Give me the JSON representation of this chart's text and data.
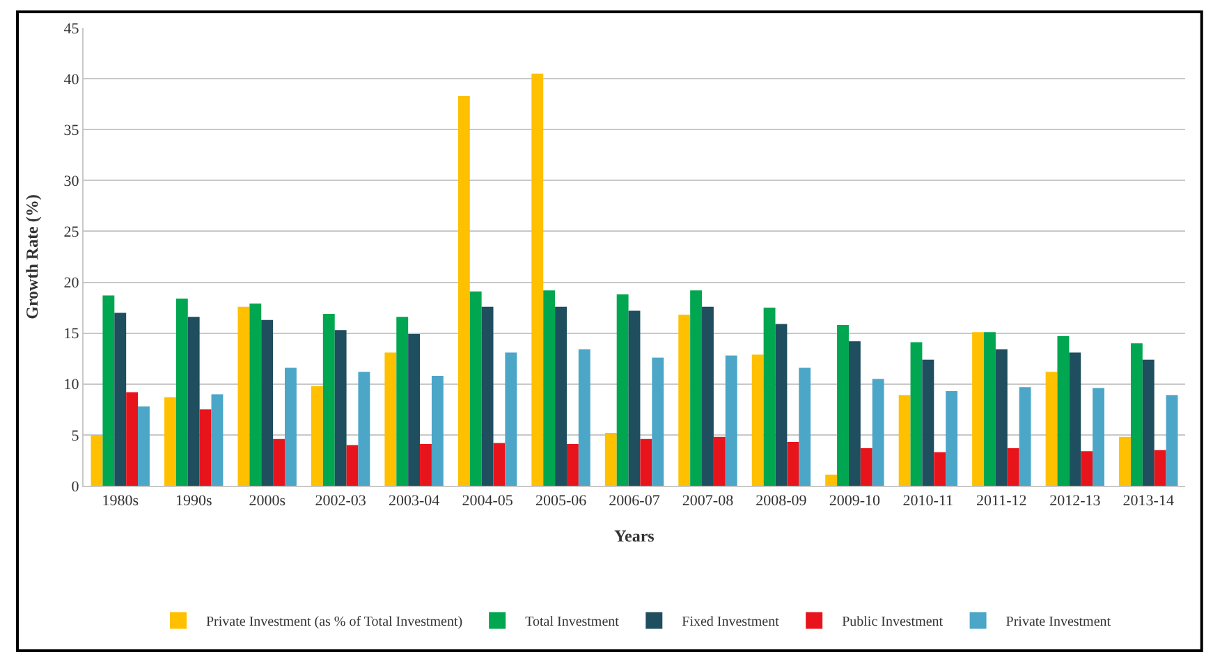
{
  "chart_data": {
    "type": "bar",
    "xlabel": "Years",
    "ylabel": "Growth Rate (%)",
    "categories": [
      "1980s",
      "1990s",
      "2000s",
      "2002-03",
      "2003-04",
      "2004-05",
      "2005-06",
      "2006-07",
      "2007-08",
      "2008-09",
      "2009-10",
      "2010-11",
      "2011-12",
      "2012-13",
      "2013-14"
    ],
    "series": [
      {
        "name": "Private Investment (as % of Total Investment)",
        "color": "#ffc000",
        "values": [
          5,
          8.7,
          17.6,
          9.8,
          13.1,
          38.3,
          40.5,
          5.2,
          16.8,
          12.9,
          1.1,
          8.9,
          15.1,
          11.2,
          4.8
        ]
      },
      {
        "name": "Total Investment",
        "color": "#00a650",
        "values": [
          18.7,
          18.4,
          17.9,
          16.9,
          16.6,
          19.1,
          19.2,
          18.8,
          19.2,
          17.5,
          15.8,
          14.1,
          15.1,
          14.7,
          14
        ]
      },
      {
        "name": "Fixed Investment",
        "color": "#1f4e5f",
        "values": [
          17,
          16.6,
          16.3,
          15.3,
          14.9,
          17.6,
          17.6,
          17.2,
          17.6,
          15.9,
          14.2,
          12.4,
          13.4,
          13.1,
          12.4
        ]
      },
      {
        "name": "Public Investment",
        "color": "#e8141c",
        "values": [
          9.2,
          7.5,
          4.6,
          4,
          4.1,
          4.2,
          4.1,
          4.6,
          4.8,
          4.3,
          3.7,
          3.3,
          3.7,
          3.4,
          3.5
        ]
      },
      {
        "name": "Private Investment",
        "color": "#4ba6c8",
        "values": [
          7.8,
          9,
          11.6,
          11.2,
          10.8,
          13.1,
          13.4,
          12.6,
          12.8,
          11.6,
          10.5,
          9.3,
          9.7,
          9.6,
          8.9
        ]
      }
    ],
    "ylim": [
      0,
      45
    ],
    "yticks": [
      0,
      5,
      10,
      15,
      20,
      25,
      30,
      35,
      40,
      45
    ],
    "grid": "y",
    "legend": "bottom"
  }
}
